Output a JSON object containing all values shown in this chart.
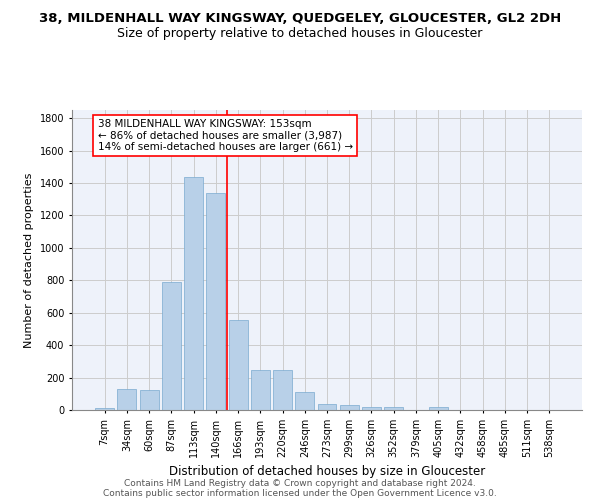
{
  "title": "38, MILDENHALL WAY KINGSWAY, QUEDGELEY, GLOUCESTER, GL2 2DH",
  "subtitle": "Size of property relative to detached houses in Gloucester",
  "xlabel": "Distribution of detached houses by size in Gloucester",
  "ylabel": "Number of detached properties",
  "categories": [
    "7sqm",
    "34sqm",
    "60sqm",
    "87sqm",
    "113sqm",
    "140sqm",
    "166sqm",
    "193sqm",
    "220sqm",
    "246sqm",
    "273sqm",
    "299sqm",
    "326sqm",
    "352sqm",
    "379sqm",
    "405sqm",
    "432sqm",
    "458sqm",
    "485sqm",
    "511sqm",
    "538sqm"
  ],
  "values": [
    15,
    130,
    125,
    790,
    1435,
    1340,
    555,
    248,
    248,
    110,
    35,
    28,
    20,
    18,
    0,
    18,
    0,
    0,
    0,
    0,
    0
  ],
  "bar_color": "#b8d0e8",
  "bar_edge_color": "#7aaacf",
  "vline_x": 5.5,
  "vline_color": "red",
  "annotation_text": "38 MILDENHALL WAY KINGSWAY: 153sqm\n← 86% of detached houses are smaller (3,987)\n14% of semi-detached houses are larger (661) →",
  "annotation_box_color": "white",
  "annotation_box_edgecolor": "red",
  "ylim": [
    0,
    1850
  ],
  "yticks": [
    0,
    200,
    400,
    600,
    800,
    1000,
    1200,
    1400,
    1600,
    1800
  ],
  "grid_color": "#cccccc",
  "bg_color": "#eef2fa",
  "footer1": "Contains HM Land Registry data © Crown copyright and database right 2024.",
  "footer2": "Contains public sector information licensed under the Open Government Licence v3.0.",
  "title_fontsize": 9.5,
  "subtitle_fontsize": 9,
  "xlabel_fontsize": 8.5,
  "ylabel_fontsize": 8,
  "tick_fontsize": 7,
  "annotation_fontsize": 7.5,
  "footer_fontsize": 6.5
}
